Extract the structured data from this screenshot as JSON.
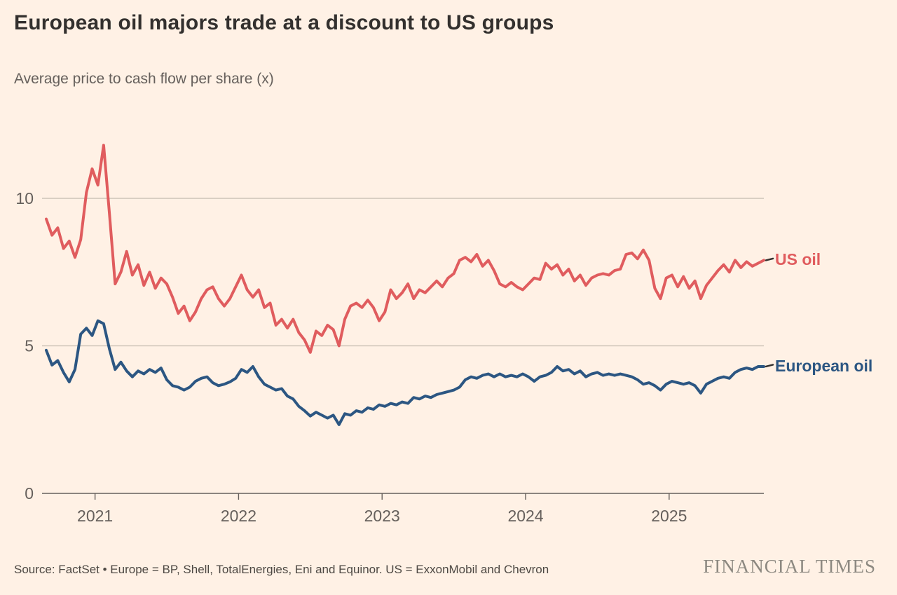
{
  "header": {
    "title": "European oil majors trade at a discount to US groups",
    "subtitle": "Average price to cash flow per share (x)"
  },
  "footer": {
    "source": "Source: FactSet • Europe = BP, Shell, TotalEnergies, Eni and Equinor. US = ExxonMobil and Chevron",
    "brand": "FINANCIAL TIMES"
  },
  "colors": {
    "background": "#FFF1E5",
    "title_text": "#33302E",
    "muted_text": "#66605C",
    "source_text": "#4D4843",
    "gridline": "#C4BBAF",
    "axis_line": "#66605C",
    "leader_tick": "#33302E",
    "brand_text": "#8D8981",
    "us_oil": "#E05C5E",
    "european_oil": "#2C5682"
  },
  "chart_data": {
    "type": "line",
    "title": "European oil majors trade at a discount to US groups",
    "subtitle": "Average price to cash flow per share (x)",
    "xlabel": "",
    "ylabel": "Average price to cash flow per share (x)",
    "grid": "horizontal",
    "legend_position": "right-end-labels",
    "x_range": [
      2020.66,
      2025.66
    ],
    "ylim": [
      0,
      12.5
    ],
    "y_ticks": [
      0,
      5,
      10
    ],
    "x_ticks": [
      2021,
      2022,
      2023,
      2024,
      2025
    ],
    "t_start": 2020.66,
    "t_step": 0.04,
    "series": [
      {
        "name": "US oil",
        "color": "#E05C5E",
        "values": [
          9.3,
          8.75,
          9.0,
          8.3,
          8.55,
          8.0,
          8.6,
          10.2,
          11.0,
          10.45,
          11.8,
          9.5,
          7.1,
          7.5,
          8.2,
          7.4,
          7.75,
          7.05,
          7.5,
          6.95,
          7.3,
          7.1,
          6.65,
          6.1,
          6.35,
          5.85,
          6.15,
          6.6,
          6.9,
          7.0,
          6.6,
          6.35,
          6.6,
          7.0,
          7.4,
          6.9,
          6.65,
          6.9,
          6.3,
          6.45,
          5.7,
          5.9,
          5.6,
          5.9,
          5.45,
          5.2,
          4.78,
          5.5,
          5.35,
          5.7,
          5.55,
          5.0,
          5.9,
          6.35,
          6.45,
          6.3,
          6.55,
          6.3,
          5.85,
          6.15,
          6.9,
          6.6,
          6.8,
          7.1,
          6.6,
          6.9,
          6.8,
          7.0,
          7.2,
          7.0,
          7.3,
          7.45,
          7.9,
          8.0,
          7.85,
          8.1,
          7.7,
          7.9,
          7.55,
          7.1,
          7.0,
          7.15,
          7.0,
          6.9,
          7.1,
          7.3,
          7.25,
          7.8,
          7.6,
          7.75,
          7.4,
          7.6,
          7.2,
          7.4,
          7.05,
          7.3,
          7.4,
          7.45,
          7.4,
          7.55,
          7.6,
          8.1,
          8.15,
          7.95,
          8.25,
          7.9,
          6.95,
          6.6,
          7.3,
          7.4,
          7.0,
          7.35,
          6.95,
          7.2,
          6.6,
          7.05,
          7.3,
          7.55,
          7.75,
          7.5,
          7.9,
          7.65,
          7.85,
          7.7,
          7.8,
          7.9
        ]
      },
      {
        "name": "European oil",
        "color": "#2C5682",
        "values": [
          4.85,
          4.35,
          4.5,
          4.1,
          3.78,
          4.2,
          5.4,
          5.6,
          5.35,
          5.85,
          5.75,
          4.9,
          4.2,
          4.45,
          4.15,
          3.95,
          4.15,
          4.05,
          4.2,
          4.1,
          4.25,
          3.85,
          3.65,
          3.6,
          3.5,
          3.6,
          3.8,
          3.9,
          3.95,
          3.75,
          3.65,
          3.7,
          3.78,
          3.9,
          4.2,
          4.1,
          4.3,
          3.95,
          3.7,
          3.6,
          3.5,
          3.55,
          3.3,
          3.2,
          2.95,
          2.8,
          2.62,
          2.75,
          2.65,
          2.55,
          2.65,
          2.33,
          2.7,
          2.65,
          2.8,
          2.75,
          2.9,
          2.85,
          3.0,
          2.95,
          3.05,
          3.0,
          3.1,
          3.05,
          3.25,
          3.2,
          3.3,
          3.25,
          3.35,
          3.4,
          3.45,
          3.5,
          3.6,
          3.85,
          3.95,
          3.9,
          4.0,
          4.05,
          3.95,
          4.05,
          3.95,
          4.0,
          3.95,
          4.05,
          3.95,
          3.8,
          3.95,
          4.0,
          4.1,
          4.3,
          4.15,
          4.2,
          4.05,
          4.15,
          3.95,
          4.05,
          4.1,
          4.0,
          4.05,
          4.0,
          4.05,
          4.0,
          3.95,
          3.85,
          3.7,
          3.75,
          3.65,
          3.5,
          3.7,
          3.8,
          3.75,
          3.7,
          3.75,
          3.65,
          3.4,
          3.7,
          3.8,
          3.9,
          3.95,
          3.9,
          4.1,
          4.2,
          4.25,
          4.2,
          4.3,
          4.3
        ]
      }
    ]
  }
}
